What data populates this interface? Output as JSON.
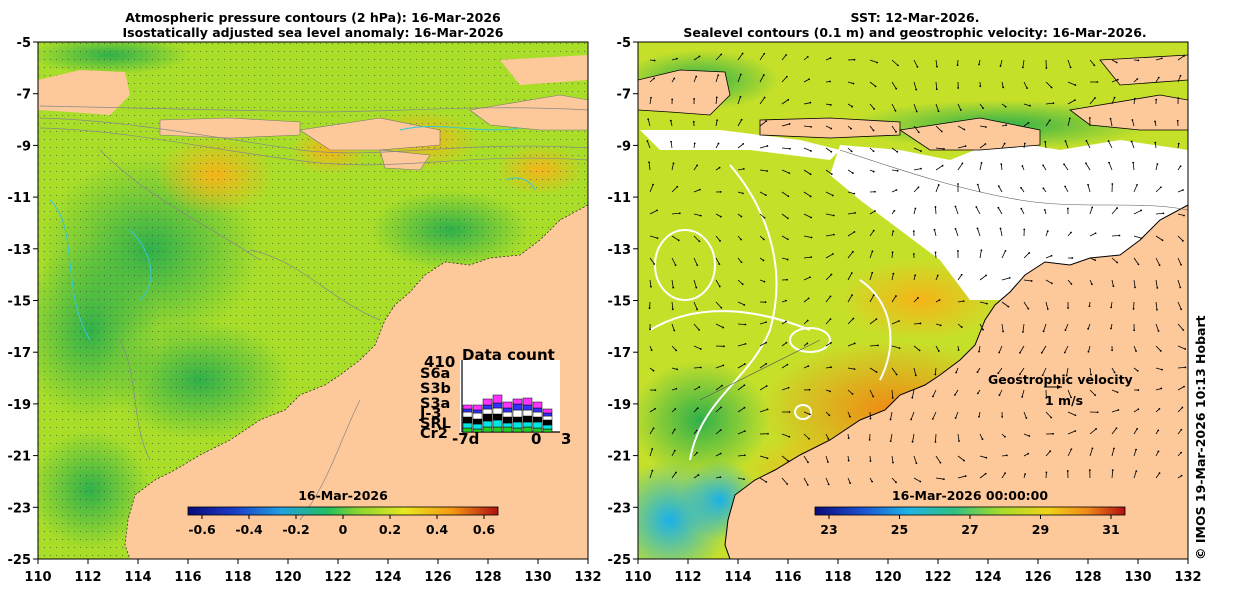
{
  "left_panel": {
    "title_line1": "Atmospheric pressure contours (2 hPa): 16-Mar-2026",
    "title_line2": "Isostatically adjusted sea level anomaly: 16-Mar-2026",
    "colorbar_title": "16-Mar-2026",
    "colorbar_ticks": [
      "-0.6",
      "-0.4",
      "-0.2",
      "0",
      "0.2",
      "0.4",
      "0.6"
    ],
    "data_count": {
      "label": "Data count",
      "total": "410",
      "satellites": [
        {
          "name": "S6a",
          "color": "#ff33ff"
        },
        {
          "name": "S3b",
          "color": "#3333ff"
        },
        {
          "name": "S3a",
          "color": "#ffffff"
        },
        {
          "name": "J-3",
          "color": "#000000"
        },
        {
          "name": "SRL",
          "color": "#00e5e5"
        },
        {
          "name": "Cr2",
          "color": "#22cc22"
        }
      ],
      "x_labels": [
        "-7d",
        "0",
        "3"
      ]
    }
  },
  "right_panel": {
    "title_line1": "SST: 12-Mar-2026.",
    "title_line2": "Sealevel contours (0.1 m) and geostrophic velocity: 16-Mar-2026.",
    "colorbar_title": "16-Mar-2026 00:00:00",
    "colorbar_ticks": [
      "23",
      "25",
      "27",
      "29",
      "31"
    ],
    "geostrophic_label": "Geostrophic velocity",
    "scale_label": "1 m/s"
  },
  "axes": {
    "y_ticks": [
      "-5",
      "-7",
      "-9",
      "-11",
      "-13",
      "-15",
      "-17",
      "-19",
      "-21",
      "-23",
      "-25"
    ],
    "x_ticks": [
      "110",
      "112",
      "114",
      "116",
      "118",
      "120",
      "122",
      "124",
      "126",
      "128",
      "130",
      "132"
    ]
  },
  "credit": "© IMOS 19-Mar-2026 10:13 Hobart",
  "colors": {
    "land": "#fdc89a",
    "sla_ocean": "#a9de28",
    "sst_ocean": "#c6e02a"
  }
}
